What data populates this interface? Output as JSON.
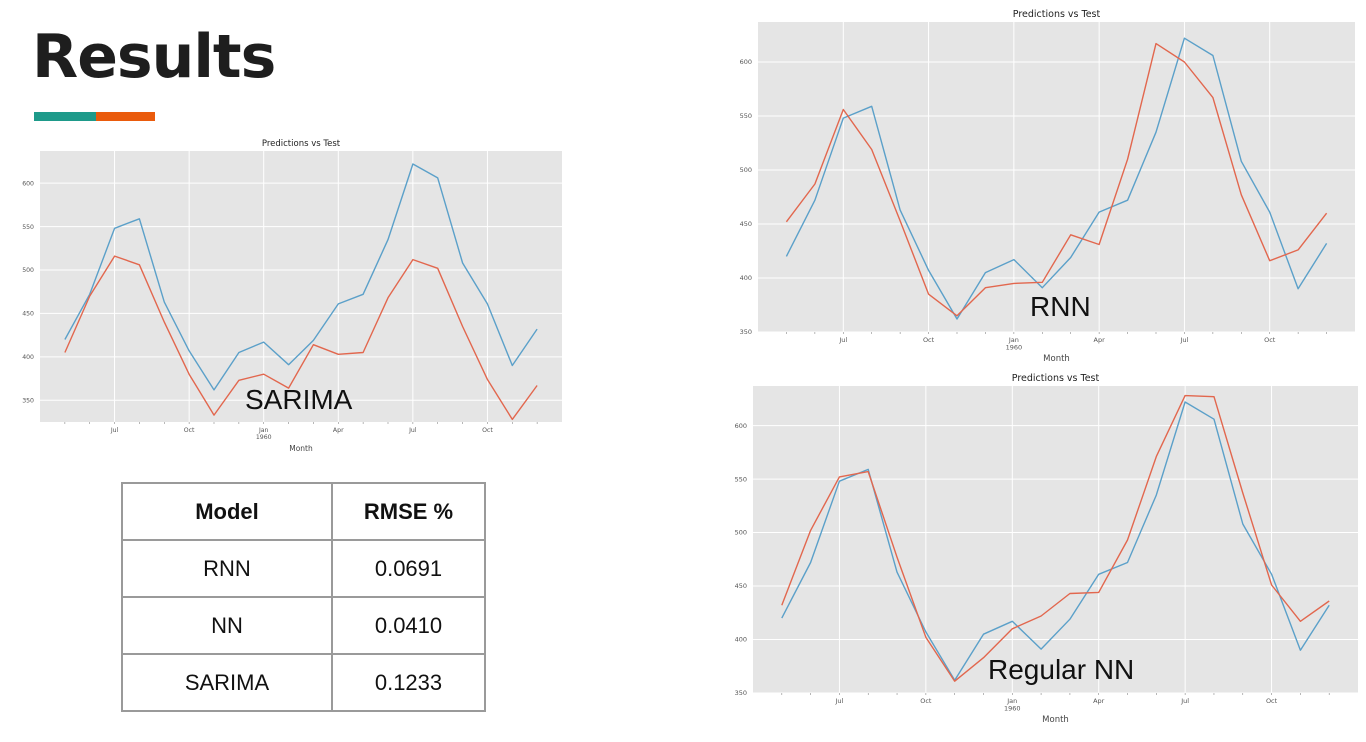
{
  "slide": {
    "title": "Results"
  },
  "accent_colors": {
    "teal": "#1e9a8a",
    "orange": "#ea5b0c"
  },
  "series_colors": {
    "test": "#5ba0c9",
    "predictions": "#e2674e"
  },
  "overlay_labels": {
    "sarima": "SARIMA",
    "rnn": "RNN",
    "nn": "Regular NN"
  },
  "table": {
    "headers": [
      "Model",
      "RMSE %"
    ],
    "rows": [
      [
        "RNN",
        "0.0691"
      ],
      [
        "NN",
        "0.0410"
      ],
      [
        "SARIMA",
        "0.1233"
      ]
    ]
  },
  "chart_data": [
    {
      "id": "sarima",
      "type": "line",
      "title": "Predictions vs Test",
      "xlabel": "Month",
      "ylabel": "",
      "x": [
        "1959-05",
        "1959-06",
        "1959-07",
        "1959-08",
        "1959-09",
        "1959-10",
        "1959-11",
        "1959-12",
        "1960-01",
        "1960-02",
        "1960-03",
        "1960-04",
        "1960-05",
        "1960-06",
        "1960-07",
        "1960-08",
        "1960-09",
        "1960-10",
        "1960-11",
        "1960-12"
      ],
      "x_ticks": [
        {
          "x": "1959-07",
          "label": "Jul"
        },
        {
          "x": "1959-10",
          "label": "Oct"
        },
        {
          "x": "1960-01",
          "label": "Jan\n1960"
        },
        {
          "x": "1960-04",
          "label": "Apr"
        },
        {
          "x": "1960-07",
          "label": "Jul"
        },
        {
          "x": "1960-10",
          "label": "Oct"
        }
      ],
      "yticks": [
        350,
        400,
        450,
        500,
        550,
        600
      ],
      "ylim": [
        325,
        637
      ],
      "xlim": [
        "1959-04",
        "1961-01"
      ],
      "grid": true,
      "series": [
        {
          "color_key": "test",
          "values": [
            420,
            472,
            548,
            559,
            463,
            407,
            362,
            405,
            417,
            391,
            419,
            461,
            472,
            535,
            622,
            606,
            508,
            461,
            390,
            432
          ]
        },
        {
          "color_key": "predictions",
          "values": [
            405,
            470,
            516,
            506,
            440,
            380,
            333,
            373,
            380,
            364,
            414,
            403,
            405,
            468,
            512,
            502,
            435,
            374,
            328,
            367
          ]
        }
      ]
    },
    {
      "id": "rnn",
      "type": "line",
      "title": "Predictions vs Test",
      "xlabel": "Month",
      "ylabel": "",
      "x": [
        "1959-05",
        "1959-06",
        "1959-07",
        "1959-08",
        "1959-09",
        "1959-10",
        "1959-11",
        "1959-12",
        "1960-01",
        "1960-02",
        "1960-03",
        "1960-04",
        "1960-05",
        "1960-06",
        "1960-07",
        "1960-08",
        "1960-09",
        "1960-10",
        "1960-11",
        "1960-12"
      ],
      "x_ticks": [
        {
          "x": "1959-07",
          "label": "Jul"
        },
        {
          "x": "1959-10",
          "label": "Oct"
        },
        {
          "x": "1960-01",
          "label": "Jan\n1960"
        },
        {
          "x": "1960-04",
          "label": "Apr"
        },
        {
          "x": "1960-07",
          "label": "Jul"
        },
        {
          "x": "1960-10",
          "label": "Oct"
        }
      ],
      "yticks": [
        350,
        400,
        450,
        500,
        550,
        600
      ],
      "ylim": [
        350,
        637
      ],
      "xlim": [
        "1959-04",
        "1961-01"
      ],
      "grid": true,
      "series": [
        {
          "color_key": "test",
          "values": [
            420,
            472,
            548,
            559,
            463,
            407,
            362,
            405,
            417,
            391,
            419,
            461,
            472,
            535,
            622,
            606,
            508,
            461,
            390,
            432
          ]
        },
        {
          "color_key": "predictions",
          "values": [
            452,
            487,
            556,
            519,
            453,
            385,
            365,
            391,
            395,
            396,
            440,
            431,
            510,
            617,
            600,
            567,
            477,
            416,
            426,
            460
          ]
        }
      ]
    },
    {
      "id": "nn",
      "type": "line",
      "title": "Predictions vs Test",
      "xlabel": "Month",
      "ylabel": "",
      "x": [
        "1959-05",
        "1959-06",
        "1959-07",
        "1959-08",
        "1959-09",
        "1959-10",
        "1959-11",
        "1959-12",
        "1960-01",
        "1960-02",
        "1960-03",
        "1960-04",
        "1960-05",
        "1960-06",
        "1960-07",
        "1960-08",
        "1960-09",
        "1960-10",
        "1960-11",
        "1960-12"
      ],
      "x_ticks": [
        {
          "x": "1959-07",
          "label": "Jul"
        },
        {
          "x": "1959-10",
          "label": "Oct"
        },
        {
          "x": "1960-01",
          "label": "Jan\n1960"
        },
        {
          "x": "1960-04",
          "label": "Apr"
        },
        {
          "x": "1960-07",
          "label": "Jul"
        },
        {
          "x": "1960-10",
          "label": "Oct"
        }
      ],
      "yticks": [
        350,
        400,
        450,
        500,
        550,
        600
      ],
      "ylim": [
        350,
        637
      ],
      "xlim": [
        "1959-04",
        "1961-01"
      ],
      "grid": true,
      "series": [
        {
          "color_key": "test",
          "values": [
            420,
            472,
            548,
            559,
            463,
            407,
            362,
            405,
            417,
            391,
            419,
            461,
            472,
            535,
            622,
            606,
            508,
            461,
            390,
            432
          ]
        },
        {
          "color_key": "predictions",
          "values": [
            432,
            502,
            552,
            557,
            477,
            402,
            361,
            383,
            410,
            422,
            443,
            444,
            493,
            571,
            628,
            627,
            537,
            451,
            417,
            436
          ]
        }
      ]
    }
  ]
}
